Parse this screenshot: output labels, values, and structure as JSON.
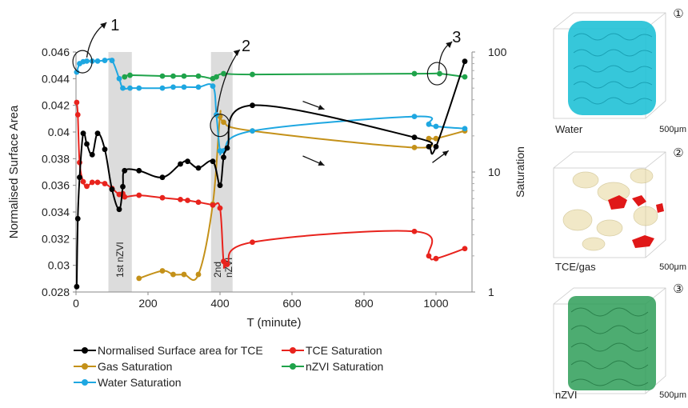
{
  "chart_data": {
    "type": "line",
    "xlabel": "T (minute)",
    "ylabel_left": "Normalised Surface Area",
    "ylabel_right": "Saturation",
    "xlim": [
      0,
      1100
    ],
    "ylim_left": [
      0.028,
      0.046
    ],
    "ylim_right": [
      1,
      100
    ],
    "right_axis_scale": "log",
    "x_ticks": [
      "0",
      "200",
      "400",
      "600",
      "800",
      "1000"
    ],
    "y_left_ticks": [
      "0.028",
      "0.03",
      "0.032",
      "0.034",
      "0.036",
      "0.038",
      "0.04",
      "0.042",
      "0.044",
      "0.046"
    ],
    "y_right_ticks": [
      "1",
      "10",
      "100"
    ],
    "shaded_regions": [
      {
        "x0": 90,
        "x1": 155,
        "label": "1st nZVI"
      },
      {
        "x0": 375,
        "x1": 435,
        "label_lines": [
          "2nd",
          "nZVI"
        ]
      }
    ],
    "series": [
      {
        "name": "Normalised Surface area for TCE",
        "axis": "left",
        "color": "#000000",
        "x": [
          2,
          5,
          10,
          20,
          30,
          45,
          60,
          80,
          100,
          120,
          130,
          135,
          175,
          240,
          290,
          310,
          340,
          380,
          400,
          410,
          420,
          490,
          940,
          980,
          1000,
          1080
        ],
        "y": [
          0.0284,
          0.0335,
          0.0366,
          0.0399,
          0.0391,
          0.0383,
          0.0399,
          0.0387,
          0.0357,
          0.0342,
          0.0359,
          0.0371,
          0.0371,
          0.0366,
          0.0376,
          0.0378,
          0.0373,
          0.0378,
          0.036,
          0.0381,
          0.0388,
          0.042,
          0.0396,
          0.0389,
          0.0389,
          0.0453
        ]
      },
      {
        "name": "TCE Saturation",
        "axis": "right",
        "color": "#e8231d",
        "x": [
          2,
          5,
          10,
          20,
          30,
          45,
          60,
          80,
          100,
          120,
          130,
          135,
          175,
          240,
          290,
          310,
          340,
          380,
          400,
          410,
          420,
          490,
          940,
          980,
          1000,
          1080
        ],
        "y": [
          38,
          30,
          12,
          8.3,
          7.6,
          8.2,
          8.2,
          8.0,
          7.3,
          6.5,
          6.6,
          6.2,
          6.4,
          6.1,
          5.9,
          5.8,
          5.6,
          5.3,
          5.0,
          1.8,
          1.7,
          2.6,
          3.2,
          2.0,
          1.9,
          2.3
        ]
      },
      {
        "name": "Gas Saturation",
        "axis": "right",
        "color": "#c49119",
        "x": [
          175,
          240,
          270,
          300,
          340,
          380,
          400,
          410,
          490,
          940,
          980,
          1000,
          1080
        ],
        "y": [
          1.3,
          1.5,
          1.4,
          1.4,
          1.4,
          5.4,
          29,
          26,
          22,
          16,
          19,
          19,
          22
        ]
      },
      {
        "name": "nZVI Saturation",
        "axis": "right",
        "color": "#1fa34a",
        "x": [
          135,
          150,
          240,
          270,
          300,
          340,
          380,
          390,
          410,
          490,
          940,
          1010,
          1080
        ],
        "y": [
          62,
          64,
          63,
          63,
          63,
          63,
          60,
          62,
          66,
          65,
          66,
          66,
          62
        ]
      },
      {
        "name": "Water Saturation",
        "axis": "right",
        "color": "#1ea7e1",
        "x": [
          2,
          10,
          20,
          30,
          45,
          60,
          80,
          100,
          120,
          130,
          150,
          175,
          240,
          270,
          300,
          340,
          380,
          390,
          400,
          410,
          490,
          940,
          980,
          1000,
          1080
        ],
        "y": [
          68,
          80,
          83,
          84,
          84,
          84,
          85,
          85,
          60,
          50,
          50,
          50,
          50,
          51,
          51,
          51,
          52,
          30,
          15,
          15,
          22,
          29,
          25,
          24,
          23
        ]
      }
    ],
    "annotations": [
      "1",
      "2",
      "3"
    ]
  },
  "legend": {
    "surface": "Normalised Surface area for TCE",
    "tce": "TCE Saturation",
    "gas": "Gas Saturation",
    "nzvi": "nZVI Saturation",
    "water": "Water Saturation"
  },
  "panels": [
    {
      "num": "①",
      "label": "Water",
      "scale": "500μm",
      "color": "#20c1d6"
    },
    {
      "num": "②",
      "label": "TCE/gas",
      "scale": "500μm",
      "color": "#e6d79a"
    },
    {
      "num": "③",
      "label": "nZVI",
      "scale": "500μm",
      "color": "#2e9e58"
    }
  ]
}
